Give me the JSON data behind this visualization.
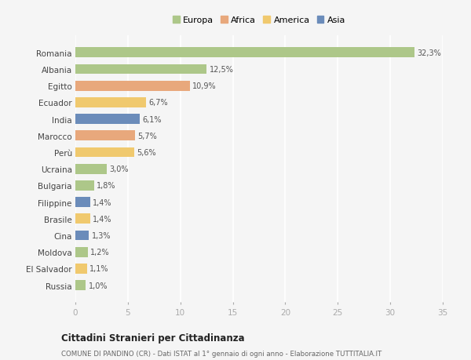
{
  "countries": [
    "Romania",
    "Albania",
    "Egitto",
    "Ecuador",
    "India",
    "Marocco",
    "Perù",
    "Ucraina",
    "Bulgaria",
    "Filippine",
    "Brasile",
    "Cina",
    "Moldova",
    "El Salvador",
    "Russia"
  ],
  "values": [
    32.3,
    12.5,
    10.9,
    6.7,
    6.1,
    5.7,
    5.6,
    3.0,
    1.8,
    1.4,
    1.4,
    1.3,
    1.2,
    1.1,
    1.0
  ],
  "labels": [
    "32,3%",
    "12,5%",
    "10,9%",
    "6,7%",
    "6,1%",
    "5,7%",
    "5,6%",
    "3,0%",
    "1,8%",
    "1,4%",
    "1,4%",
    "1,3%",
    "1,2%",
    "1,1%",
    "1,0%"
  ],
  "colors": [
    "#adc789",
    "#adc789",
    "#e8a87c",
    "#f0c96e",
    "#6b8cba",
    "#e8a87c",
    "#f0c96e",
    "#adc789",
    "#adc789",
    "#6b8cba",
    "#f0c96e",
    "#6b8cba",
    "#adc789",
    "#f0c96e",
    "#adc789"
  ],
  "legend": {
    "Europa": "#adc789",
    "Africa": "#e8a87c",
    "America": "#f0c96e",
    "Asia": "#6b8cba"
  },
  "xlim": [
    0,
    35
  ],
  "xticks": [
    0,
    5,
    10,
    15,
    20,
    25,
    30,
    35
  ],
  "title": "Cittadini Stranieri per Cittadinanza",
  "subtitle": "COMUNE DI PANDINO (CR) - Dati ISTAT al 1° gennaio di ogni anno - Elaborazione TUTTITALIA.IT",
  "bg_color": "#f5f5f5",
  "grid_color": "#ffffff",
  "bar_height": 0.6
}
